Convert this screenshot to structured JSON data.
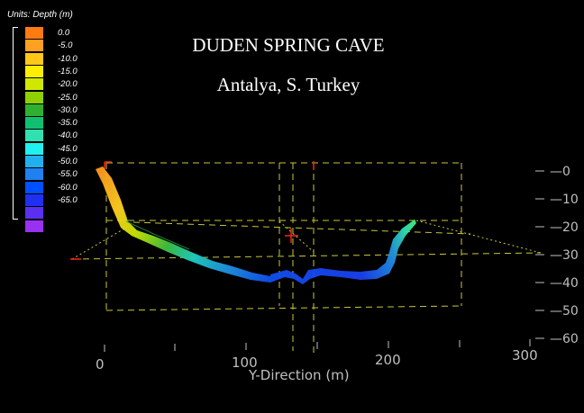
{
  "units_label": "Units:  Depth (m)",
  "title": "DUDEN SPRING CAVE",
  "subtitle": "Antalya, S. Turkey",
  "legend": [
    {
      "label": "0.0",
      "color": "#ff7a10"
    },
    {
      "label": "-5.0",
      "color": "#ffa020"
    },
    {
      "label": "-10.0",
      "color": "#ffc818"
    },
    {
      "label": "-15.0",
      "color": "#ffee00"
    },
    {
      "label": "-20.0",
      "color": "#cfe800"
    },
    {
      "label": "-25.0",
      "color": "#8fd000"
    },
    {
      "label": "-30.0",
      "color": "#30b030"
    },
    {
      "label": "-35.0",
      "color": "#10c070"
    },
    {
      "label": "-40.0",
      "color": "#30e0b0"
    },
    {
      "label": "-45.0",
      "color": "#20f0f0"
    },
    {
      "label": "-50.0",
      "color": "#20b0f0"
    },
    {
      "label": "-55.0",
      "color": "#2080f0"
    },
    {
      "label": "-60.0",
      "color": "#0050ff"
    },
    {
      "label": "-65.0",
      "color": "#2030f0"
    },
    {
      "label": "",
      "color": "#5a30f0"
    },
    {
      "label": "",
      "color": "#9a30f0"
    }
  ],
  "depth_ticks": [
    "0",
    "10",
    "20",
    "30",
    "40",
    "50",
    "60"
  ],
  "y_ticks": [
    "0",
    "100",
    "200",
    "300"
  ],
  "y_axis_label": "Y-Direction (m)",
  "colors": {
    "background": "#000000",
    "box_lines": "#c8c83a",
    "axis_text": "#bfbfbf",
    "marker": "#ff2020"
  }
}
